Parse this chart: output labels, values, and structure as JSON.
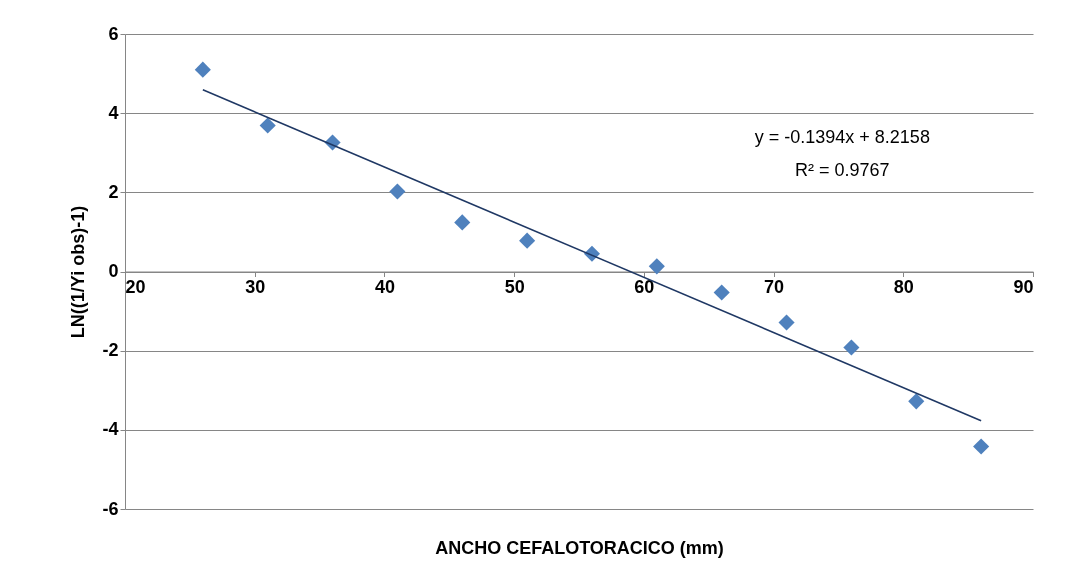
{
  "chart_data": {
    "type": "scatter",
    "xlabel": "ANCHO CEFALOTORACICO (mm)",
    "ylabel": "LN((1/Yi obs)-1)",
    "xlim": [
      20,
      90
    ],
    "xticks": [
      20,
      30,
      40,
      50,
      60,
      70,
      80,
      90
    ],
    "ylim": [
      -6,
      6
    ],
    "yticks": [
      -6,
      -4,
      -2,
      0,
      2,
      4,
      6
    ],
    "grid": "y",
    "series": [
      {
        "color": "#4f81bd",
        "marker": "diamond",
        "x": [
          26,
          31,
          36,
          41,
          46,
          51,
          56,
          61,
          66,
          71,
          76,
          81,
          86
        ],
        "values": [
          5.1,
          3.69,
          3.26,
          2.02,
          1.24,
          0.78,
          0.45,
          0.13,
          -0.53,
          -1.29,
          -1.92,
          -3.28,
          -4.42
        ]
      },
      {
        "type": "line",
        "color": "#1f3864",
        "x": [
          26,
          86
        ],
        "values": [
          4.59,
          -3.77
        ],
        "marker": "none"
      }
    ],
    "annotations": [
      "y = -0.1394x + 8.2158",
      "R² = 0.9767"
    ]
  }
}
